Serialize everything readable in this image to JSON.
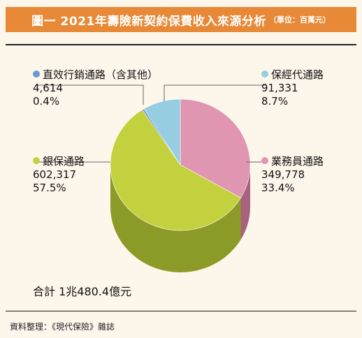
{
  "header": {
    "title": "圖一 2021年壽險新契約保費收入來源分析",
    "unit": "（單位：百萬元）"
  },
  "chart_data": {
    "type": "pie",
    "title": "圖一 2021年壽險新契約保費收入來源分析",
    "unit": "（單位：百萬元）",
    "slices": [
      {
        "name": "業務員通路",
        "value": "349,778",
        "percent": "33.4%",
        "v": 349778,
        "p": 33.4,
        "color": "#e095b0",
        "side": "#a7627d"
      },
      {
        "name": "銀保通路",
        "value": "602,317",
        "percent": "57.5%",
        "v": 602317,
        "p": 57.5,
        "color": "#c3d13e",
        "side": "#8c9a27"
      },
      {
        "name": "直效行銷通路（含其他）",
        "value": "4,614",
        "percent": "0.4%",
        "v": 4614,
        "p": 0.4,
        "color": "#6c97cf",
        "side": "#4a6f9e"
      },
      {
        "name": "保經代通路",
        "value": "91,331",
        "percent": "8.7%",
        "v": 91331,
        "p": 8.7,
        "color": "#96cde0",
        "side": "#6aa2b5"
      }
    ],
    "total": "合計 1兆480.4億元"
  },
  "footer": {
    "source": "資料整理：《現代保險》雜誌"
  }
}
